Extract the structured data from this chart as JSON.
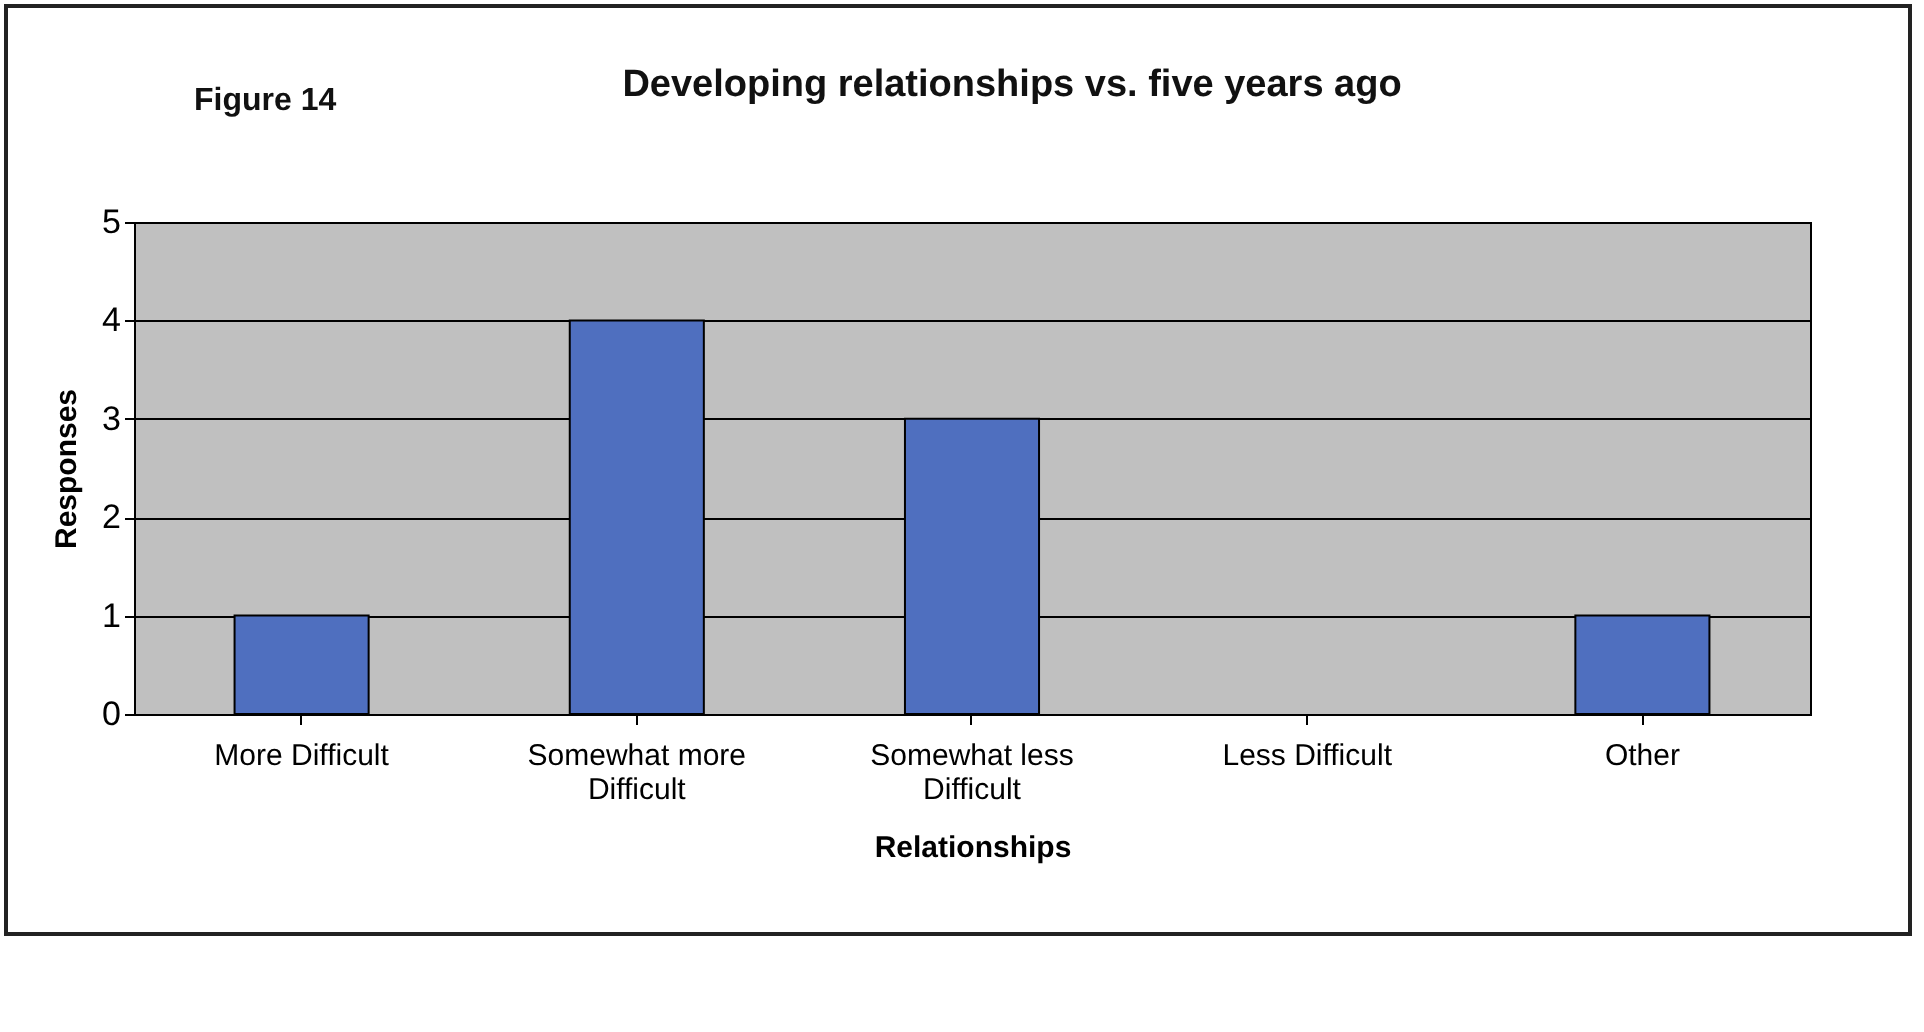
{
  "chart_data": {
    "type": "bar",
    "title": "Developing relationships vs. five years ago",
    "annotations": [
      "Figure 14"
    ],
    "xlabel": "Relationships",
    "ylabel": "Responses",
    "categories": [
      "More Difficult",
      "Somewhat more Difficult",
      "Somewhat less Difficult",
      "Less Difficult",
      "Other"
    ],
    "values": [
      1,
      4,
      3,
      0,
      1
    ],
    "color": "#4f6fbf",
    "ylim": [
      0,
      5
    ],
    "yticks": [
      0,
      1,
      2,
      3,
      4,
      5
    ],
    "grid": "y"
  }
}
